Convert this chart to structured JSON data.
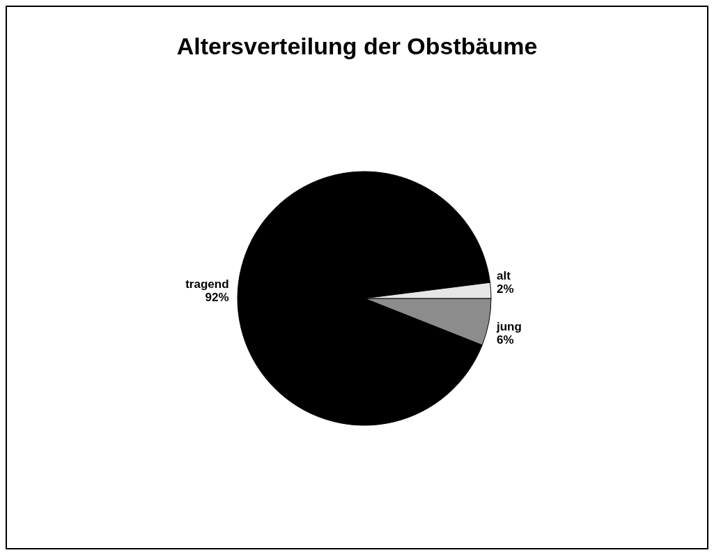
{
  "chart_data": {
    "type": "pie",
    "title": "Altersverteilung der Obstbäume",
    "categories": [
      "jung",
      "tragend",
      "alt"
    ],
    "values": [
      6,
      92,
      2
    ],
    "colors": [
      "#8c8c8c",
      "#000000",
      "#e6e6e6"
    ],
    "value_labels": [
      "6%",
      "92%",
      "2%"
    ]
  }
}
